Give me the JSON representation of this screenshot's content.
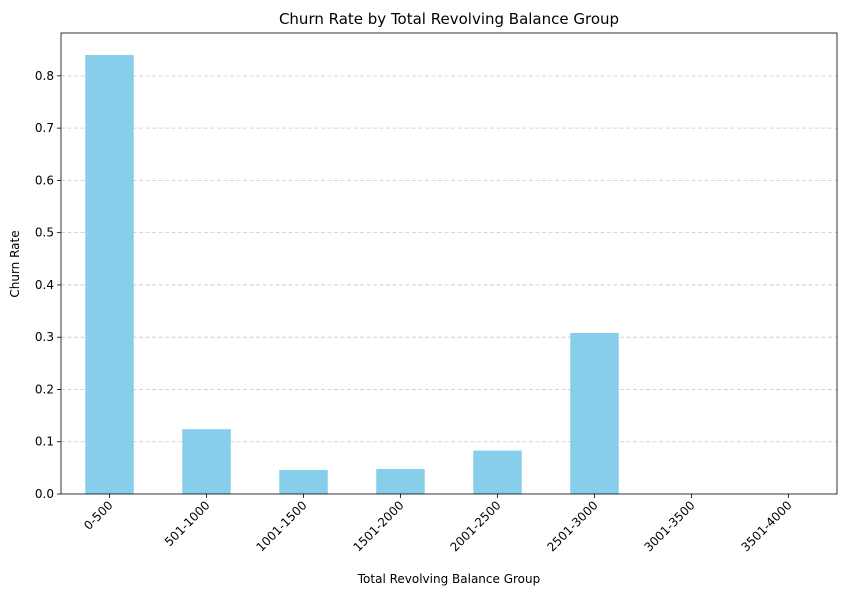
{
  "chart_data": {
    "type": "bar",
    "title": "Churn Rate by Total Revolving Balance Group",
    "xlabel": "Total Revolving Balance Group",
    "ylabel": "Churn Rate",
    "categories": [
      "0-500",
      "501-1000",
      "1001-1500",
      "1501-2000",
      "2001-2500",
      "2501-3000",
      "3001-3500",
      "3501-4000"
    ],
    "values": [
      0.84,
      0.124,
      0.046,
      0.048,
      0.083,
      0.308,
      0,
      0
    ],
    "ylim": [
      0,
      0.882
    ],
    "yticks": [
      0.0,
      0.1,
      0.2,
      0.3,
      0.4,
      0.5,
      0.6,
      0.7,
      0.8
    ],
    "ytick_labels": [
      "0.0",
      "0.1",
      "0.2",
      "0.3",
      "0.4",
      "0.5",
      "0.6",
      "0.7",
      "0.8"
    ],
    "grid": "y-dashed",
    "bar_color": "#87ceeb",
    "grid_color": "#c8c8c8",
    "x_tick_rotation_deg": 45
  }
}
